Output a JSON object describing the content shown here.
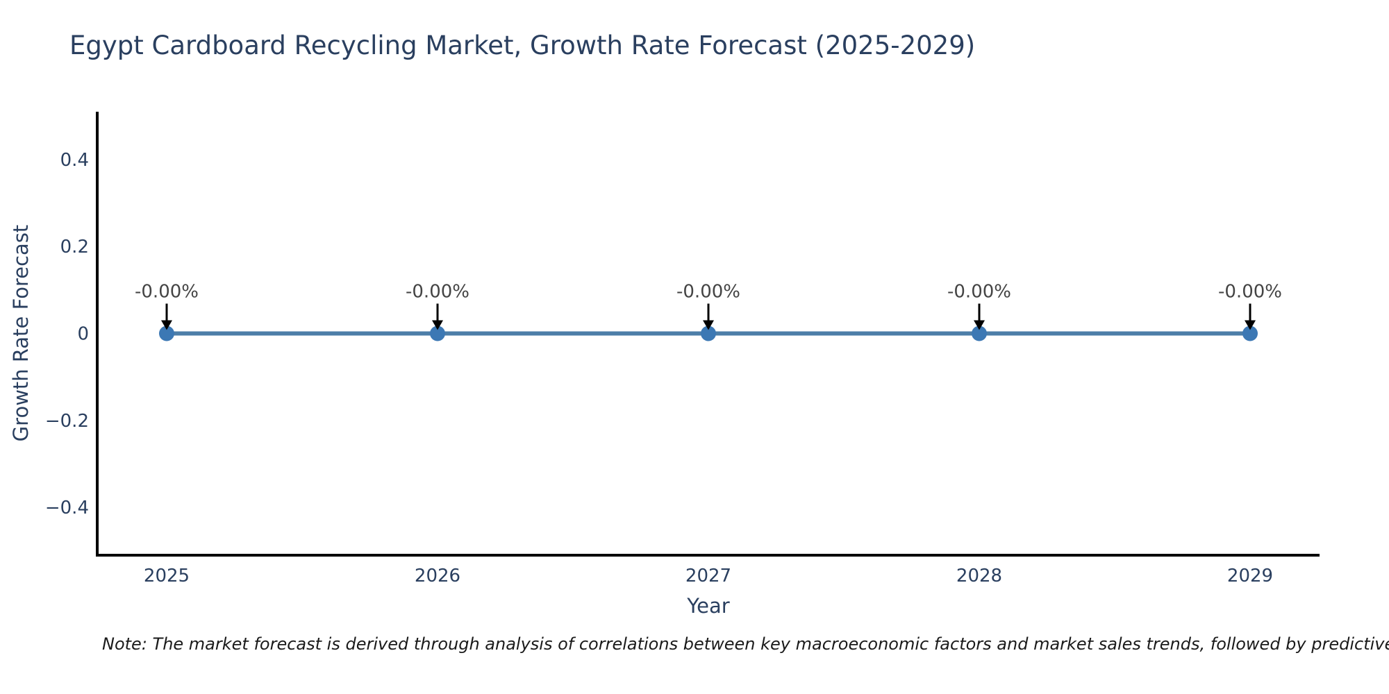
{
  "header": {
    "title": "Egypt Cardboard Recycling Market, Growth Rate Forecast (2025-2029)"
  },
  "chart_data": {
    "type": "line",
    "title": "Egypt Cardboard Recycling Market, Growth Rate Forecast (2025-2029)",
    "xlabel": "Year",
    "ylabel": "Growth Rate Forecast",
    "categories": [
      "2025",
      "2026",
      "2027",
      "2028",
      "2029"
    ],
    "series": [
      {
        "name": "Growth Rate Forecast",
        "values": [
          0,
          0,
          0,
          0,
          0
        ]
      }
    ],
    "point_annotations": [
      "-0.00%",
      "-0.00%",
      "-0.00%",
      "-0.00%",
      "-0.00%"
    ],
    "ylim": [
      -0.51,
      0.51
    ],
    "yticks": [
      {
        "value": 0.4,
        "label": "0.4"
      },
      {
        "value": 0.2,
        "label": "0.2"
      },
      {
        "value": 0,
        "label": "0"
      },
      {
        "value": -0.2,
        "label": "−0.2"
      },
      {
        "value": -0.4,
        "label": "−0.4"
      }
    ],
    "grid": false,
    "legend": "none",
    "colors": {
      "line": "#4d7ea8",
      "marker": "#3c78b4",
      "axis": "#000000",
      "title_text": "#2a3f5f",
      "tick_text": "#2a3f5f",
      "annotation_text": "#444444",
      "arrow": "#000000",
      "note_text": "#1a1a1a"
    }
  },
  "note": {
    "text": "Note: The market forecast is derived through analysis of correlations between key macroeconomic factors and market sales trends, followed by predictive modeling to project future sa"
  }
}
